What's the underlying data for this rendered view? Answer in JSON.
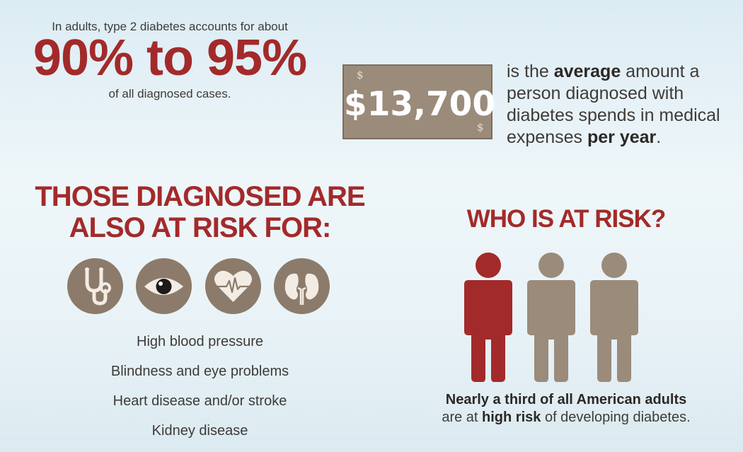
{
  "stat": {
    "intro": "In adults, type 2 diabetes accounts for about",
    "range": "90% to 95%",
    "sub": "of all diagnosed cases."
  },
  "cost": {
    "amount": "$13,700",
    "currency_symbol": "$",
    "desc_pre": "is the ",
    "desc_bold1": "average",
    "desc_mid": " amount a person diagnosed with diabetes spends in medical expenses ",
    "desc_bold2": "per year",
    "desc_end": "."
  },
  "risks": {
    "heading_line1": "THOSE DIAGNOSED ARE",
    "heading_line2": "ALSO AT RISK FOR:",
    "icons": [
      "stethoscope-icon",
      "eye-icon",
      "heart-icon",
      "kidney-icon"
    ],
    "items": [
      "High blood pressure",
      "Blindness and eye problems",
      "Heart disease and/or stroke",
      "Kidney disease"
    ]
  },
  "who": {
    "heading": "WHO IS AT RISK?",
    "people_highlighted": 1,
    "people_total": 3,
    "caption_bold1": "Nearly a third of all American adults",
    "caption_pre": "are at ",
    "caption_bold2": "high risk",
    "caption_end": " of developing diabetes."
  },
  "colors": {
    "accent_red": "#a32a2a",
    "taupe": "#9b8b7b",
    "text": "#3f3b38"
  }
}
